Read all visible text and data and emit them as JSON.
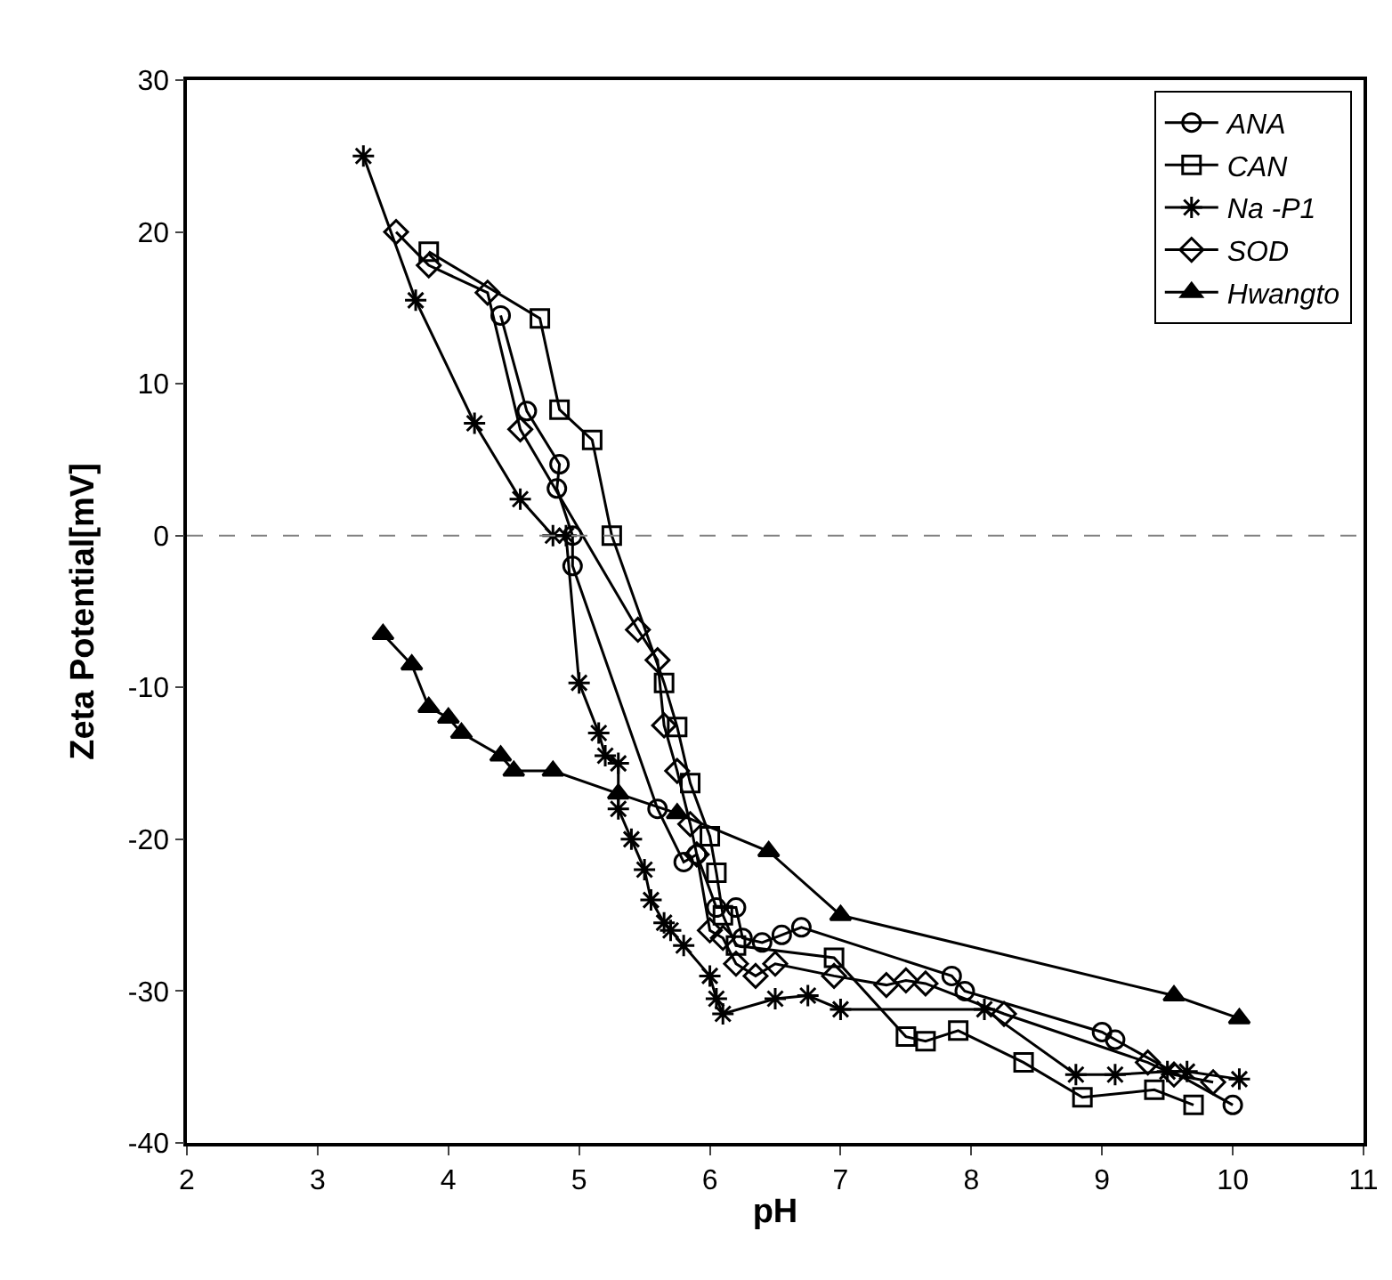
{
  "chart_data": {
    "type": "line",
    "xlabel": "pH",
    "ylabel": "Zeta Potential[mV]",
    "xlim": [
      2,
      11
    ],
    "xticks": [
      2,
      3,
      4,
      5,
      6,
      7,
      8,
      9,
      10,
      11
    ],
    "ylim": [
      -40,
      30
    ],
    "yticks": [
      -40,
      -30,
      -20,
      -10,
      0,
      10,
      20,
      30
    ],
    "grid": false,
    "legend": "top right",
    "line_style": "solid",
    "ref_lines": [
      {
        "axis": "y",
        "value": 0,
        "line_style": "dashed",
        "color": "#808080"
      }
    ],
    "series": [
      {
        "name": "ANA",
        "color": "#000000",
        "marker": "circle",
        "x": [
          4.4,
          4.6,
          4.85,
          4.83,
          4.95,
          4.95,
          5.6,
          5.8,
          5.9,
          6.05,
          6.2,
          6.25,
          6.4,
          6.55,
          6.7,
          7.85,
          7.95,
          9.0,
          9.1,
          10.0
        ],
        "values": [
          14.5,
          8.2,
          4.7,
          3.1,
          0,
          -2,
          -18,
          -21.5,
          -21,
          -24.5,
          -24.5,
          -26.5,
          -26.8,
          -26.3,
          -25.8,
          -29,
          -30,
          -32.7,
          -33.2,
          -37.5
        ]
      },
      {
        "name": "CAN",
        "color": "#000000",
        "marker": "square",
        "x": [
          3.85,
          4.7,
          4.85,
          5.1,
          5.25,
          5.65,
          5.75,
          5.85,
          6.0,
          6.05,
          6.1,
          6.2,
          6.95,
          7.5,
          7.65,
          7.9,
          8.4,
          8.85,
          9.4,
          9.7
        ],
        "values": [
          18.7,
          14.3,
          8.3,
          6.3,
          0,
          -9.7,
          -12.6,
          -16.3,
          -19.8,
          -22.2,
          -25,
          -27,
          -27.8,
          -33,
          -33.3,
          -32.6,
          -34.7,
          -37,
          -36.5,
          -37.5
        ]
      },
      {
        "name": "Na -P1",
        "color": "#000000",
        "marker": "cross",
        "x": [
          3.35,
          3.75,
          4.2,
          4.55,
          4.8,
          4.9,
          5.0,
          5.15,
          5.2,
          5.3,
          5.3,
          5.4,
          5.5,
          5.55,
          5.65,
          5.7,
          5.8,
          6.0,
          6.05,
          6.1,
          6.5,
          6.75,
          7.0,
          8.1,
          8.8,
          9.1,
          9.5,
          9.65,
          10.05
        ],
        "values": [
          25,
          15.5,
          7.4,
          2.4,
          0,
          0,
          -9.7,
          -13,
          -14.5,
          -15,
          -18,
          -20,
          -22,
          -24,
          -25.5,
          -26,
          -27,
          -29,
          -30.5,
          -31.5,
          -30.5,
          -30.3,
          -31.2,
          -31.2,
          -35.5,
          -35.5,
          -35.3,
          -35.3,
          -35.8
        ]
      },
      {
        "name": "SOD",
        "color": "#000000",
        "marker": "diamond",
        "x": [
          3.6,
          3.85,
          4.3,
          4.55,
          5.45,
          5.6,
          5.65,
          5.75,
          5.85,
          5.9,
          6.0,
          6.1,
          6.2,
          6.35,
          6.5,
          6.95,
          7.35,
          7.5,
          7.65,
          8.25,
          9.35,
          9.55,
          9.85
        ],
        "values": [
          20,
          17.8,
          16,
          7,
          -6.2,
          -8.2,
          -12.5,
          -15.5,
          -19,
          -21,
          -26,
          -26.5,
          -28.2,
          -29,
          -28.2,
          -29,
          -29.6,
          -29.3,
          -29.5,
          -31.5,
          -34.7,
          -35.5,
          -36
        ]
      },
      {
        "name": "Hwangto",
        "color": "#000000",
        "marker": "triangle",
        "x": [
          3.5,
          3.72,
          3.85,
          4.0,
          4.1,
          4.4,
          4.5,
          4.8,
          5.3,
          5.75,
          6.45,
          7.0,
          9.55,
          10.05
        ],
        "values": [
          -6.5,
          -8.5,
          -11.3,
          -12,
          -13,
          -14.5,
          -15.5,
          -15.5,
          -17,
          -18.3,
          -20.8,
          -25,
          -30.3,
          -31.8
        ]
      }
    ]
  }
}
